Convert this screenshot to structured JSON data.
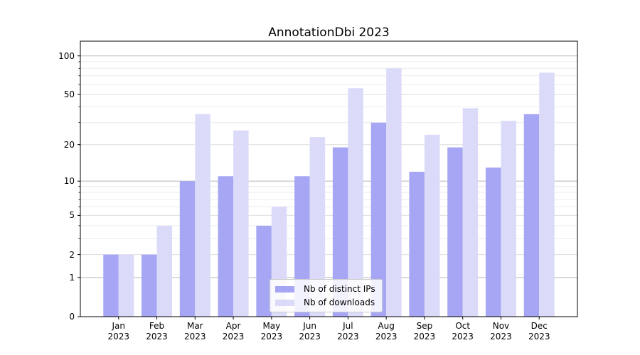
{
  "figure": {
    "background": "#ffffff"
  },
  "chart_data": {
    "type": "bar",
    "title": "AnnotationDbi 2023",
    "categories": [
      "Jan 2023",
      "Feb 2023",
      "Mar 2023",
      "Apr 2023",
      "May 2023",
      "Jun 2023",
      "Jul 2023",
      "Aug 2023",
      "Sep 2023",
      "Oct 2023",
      "Nov 2023",
      "Dec 2023"
    ],
    "series": [
      {
        "name": "Nb of distinct IPs",
        "color": "#a6a6f4",
        "values": [
          2,
          2,
          10,
          11,
          4,
          11,
          19,
          30,
          12,
          19,
          13,
          35
        ]
      },
      {
        "name": "Nb of downloads",
        "color": "#dbdbf9",
        "values": [
          2,
          4,
          35,
          26,
          6,
          23,
          56,
          80,
          24,
          39,
          31,
          74
        ]
      }
    ],
    "xlabel": "",
    "ylabel": "",
    "y_scale": "log1p",
    "ylim": [
      0,
      130
    ],
    "y_ticks": [
      0,
      1,
      2,
      5,
      10,
      20,
      50,
      100
    ],
    "y_grid_major": [
      1,
      10,
      100
    ],
    "y_grid_mid": [
      2,
      5,
      20,
      50
    ],
    "y_grid_minor": [
      3,
      4,
      6,
      7,
      8,
      9,
      30,
      40,
      60,
      70,
      80,
      90
    ],
    "grid": true,
    "legend_position": "lower center"
  },
  "colors": {
    "grid_major": "#b9b9b9",
    "grid_mid": "#dedede",
    "grid_minor": "#ececec",
    "spine": "#000000",
    "text": "#000000",
    "legend_border": "#cccccc"
  }
}
